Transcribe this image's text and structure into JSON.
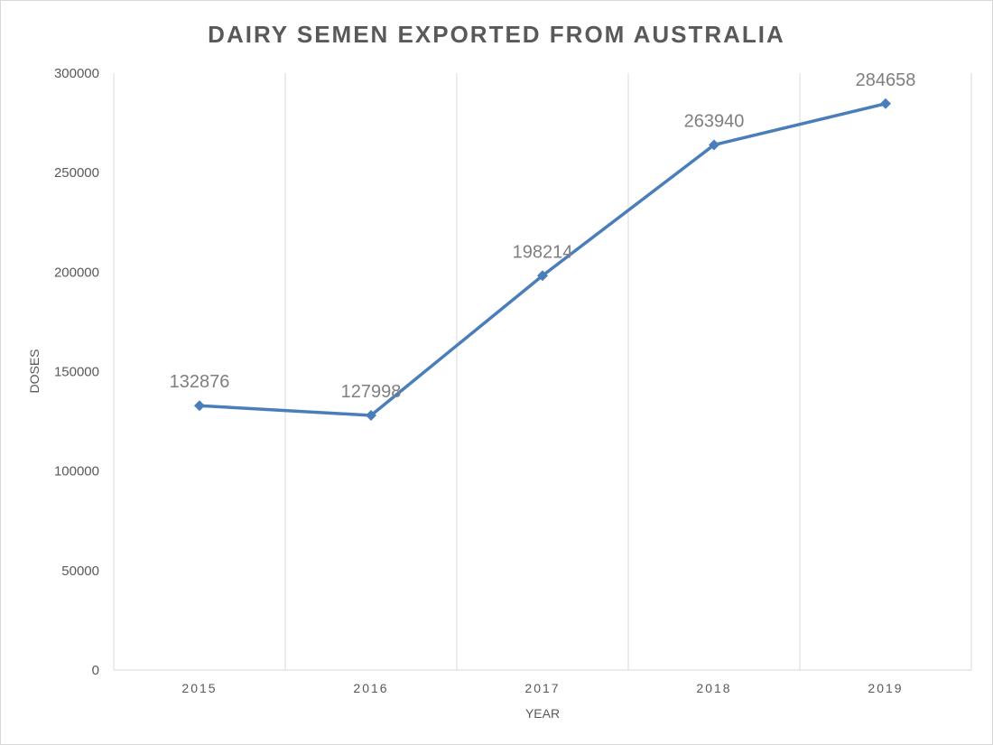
{
  "chart_data": {
    "type": "line",
    "title": "DAIRY SEMEN EXPORTED FROM AUSTRALIA",
    "xlabel": "YEAR",
    "ylabel": "DOSES",
    "categories": [
      "2015",
      "2016",
      "2017",
      "2018",
      "2019"
    ],
    "series": [
      {
        "values": [
          132876,
          127998,
          198214,
          263940,
          284658
        ],
        "color": "#4a7ebb"
      }
    ],
    "data_labels": [
      "132876",
      "127998",
      "198214",
      "263940",
      "284658"
    ],
    "ylim": [
      0,
      300000
    ],
    "yticks": [
      "0",
      "50000",
      "100000",
      "150000",
      "200000",
      "250000",
      "300000"
    ],
    "grid": "vertical",
    "marker": "diamond",
    "gridline_color": "#d9d9d9"
  }
}
